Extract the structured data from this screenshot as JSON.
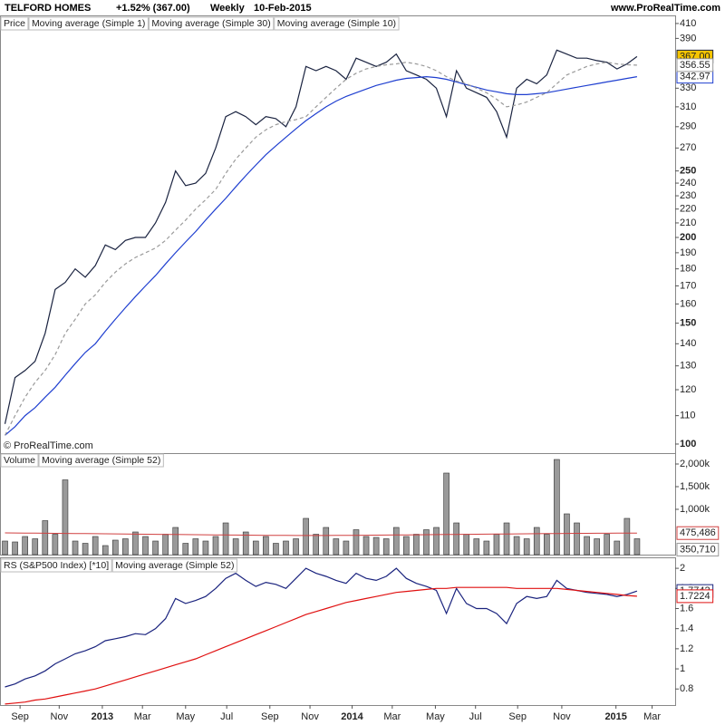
{
  "header": {
    "title": "TELFORD HOMES",
    "change": "+1.52% (367.00)",
    "period": "Weekly",
    "date": "10-Feb-2015",
    "site": "www.ProRealTime.com",
    "copyright": "© ProRealTime.com"
  },
  "x_axis": {
    "xlim": [
      -0.5,
      66.8
    ],
    "xticks": [
      {
        "value": 1.5,
        "label": "Sep"
      },
      {
        "value": 5.4,
        "label": "Nov"
      },
      {
        "value": 9.7,
        "label": "2013"
      },
      {
        "value": 13.7,
        "label": "Mar"
      },
      {
        "value": 18.0,
        "label": "May"
      },
      {
        "value": 22.1,
        "label": "Jul"
      },
      {
        "value": 26.4,
        "label": "Sep"
      },
      {
        "value": 30.4,
        "label": "Nov"
      },
      {
        "value": 34.6,
        "label": "2014"
      },
      {
        "value": 38.6,
        "label": "Mar"
      },
      {
        "value": 42.9,
        "label": "May"
      },
      {
        "value": 46.9,
        "label": "Jul"
      },
      {
        "value": 51.1,
        "label": "Sep"
      },
      {
        "value": 55.5,
        "label": "Nov"
      },
      {
        "value": 60.9,
        "label": "2015"
      },
      {
        "value": 64.5,
        "label": "Mar"
      }
    ]
  },
  "chart_data": [
    {
      "type": "line",
      "label": "Price",
      "log_scale": true,
      "ylim": [
        97,
        420
      ],
      "yticks": [
        100,
        110,
        120,
        130,
        140,
        150,
        160,
        170,
        180,
        190,
        200,
        210,
        220,
        230,
        240,
        250,
        270,
        290,
        310,
        330,
        390,
        410
      ],
      "series": [
        {
          "name": "Moving average (Simple 1)",
          "color": "#1a2340",
          "dash": false,
          "label_bg": "#f5c400",
          "values": [
            107,
            125,
            128,
            132,
            145,
            168,
            172,
            180,
            175,
            182,
            195,
            192,
            198,
            200,
            200,
            210,
            225,
            250,
            238,
            240,
            248,
            270,
            300,
            305,
            300,
            292,
            300,
            298,
            290,
            310,
            355,
            350,
            355,
            350,
            340,
            365,
            360,
            355,
            360,
            370,
            350,
            345,
            340,
            330,
            300,
            350,
            330,
            325,
            320,
            305,
            280,
            330,
            340,
            335,
            345,
            375,
            370,
            365,
            365,
            362,
            360,
            352,
            358,
            367
          ],
          "value_label": "367.00"
        },
        {
          "name": "Moving average (Simple 30)",
          "color": "#1f3fd0",
          "dash": false,
          "label_bg": "#ffffff",
          "values": [
            103,
            106,
            110,
            113,
            117,
            121,
            126,
            131,
            136,
            140,
            146,
            152,
            158,
            164,
            170,
            176,
            183,
            190,
            197,
            204,
            212,
            220,
            228,
            237,
            246,
            255,
            264,
            272,
            280,
            288,
            296,
            303,
            310,
            316,
            321,
            325,
            329,
            333,
            336,
            339,
            341,
            342,
            343,
            342,
            340,
            337,
            334,
            331,
            328,
            326,
            324,
            323,
            323,
            324,
            325,
            327,
            329,
            331,
            333,
            335,
            337,
            339,
            341,
            342.97
          ],
          "value_label": "342.97"
        },
        {
          "name": "Moving average (Simple 10)",
          "color": "#9a9a9a",
          "dash": true,
          "label_bg": "#ffffff",
          "values": [
            103,
            110,
            117,
            123,
            128,
            135,
            145,
            152,
            160,
            165,
            172,
            178,
            183,
            187,
            190,
            193,
            198,
            205,
            212,
            220,
            227,
            235,
            248,
            260,
            270,
            280,
            287,
            292,
            295,
            297,
            300,
            310,
            320,
            330,
            340,
            347,
            352,
            355,
            357,
            358,
            360,
            358,
            355,
            350,
            343,
            338,
            335,
            330,
            325,
            318,
            310,
            312,
            315,
            320,
            325,
            335,
            345,
            350,
            355,
            358,
            360,
            358,
            357,
            356.55
          ],
          "value_label": "356.55"
        }
      ]
    },
    {
      "type": "bar",
      "label": "Volume",
      "ylim": [
        0,
        2240000
      ],
      "yticks": [
        {
          "value": 1000000,
          "label": "1,000k"
        },
        {
          "value": 1500000,
          "label": "1,500k"
        },
        {
          "value": 2000000,
          "label": "2,000k"
        }
      ],
      "color": "#9a9a9a",
      "values": [
        300000,
        280000,
        400000,
        350000,
        750000,
        450000,
        1650000,
        300000,
        250000,
        400000,
        200000,
        320000,
        350000,
        500000,
        400000,
        300000,
        450000,
        600000,
        250000,
        350000,
        300000,
        400000,
        700000,
        350000,
        500000,
        300000,
        400000,
        250000,
        300000,
        350000,
        800000,
        450000,
        600000,
        350000,
        300000,
        550000,
        400000,
        380000,
        350000,
        600000,
        400000,
        450000,
        550000,
        600000,
        1800000,
        700000,
        450000,
        350000,
        300000,
        450000,
        700000,
        400000,
        350000,
        600000,
        450000,
        2100000,
        900000,
        700000,
        400000,
        350000,
        450000,
        300000,
        800000,
        350710
      ],
      "value_label": "350,710",
      "series": [
        {
          "name": "Moving average (Simple 52)",
          "color": "#d04040",
          "values": [
            480000,
            478000,
            476000,
            474000,
            472000,
            470000,
            468000,
            466000,
            464000,
            462000,
            460000,
            458000,
            455000,
            452000,
            450000,
            448000,
            446000,
            444000,
            442000,
            440000,
            438000,
            436000,
            434000,
            432000,
            430000,
            428000,
            426000,
            425000,
            424000,
            423000,
            422000,
            422000,
            423000,
            424000,
            425000,
            426000,
            428000,
            430000,
            432000,
            434000,
            436000,
            438000,
            440000,
            442000,
            444000,
            446000,
            448000,
            450000,
            452000,
            454000,
            456000,
            458000,
            460000,
            462000,
            464000,
            466000,
            468000,
            470000,
            471000,
            472000,
            473000,
            474000,
            475000,
            475486
          ],
          "value_label": "475,486"
        }
      ]
    },
    {
      "type": "line",
      "label": "RS (S&P500 Index) [*10]",
      "ylim": [
        0.64,
        2.1
      ],
      "yticks": [
        0.8,
        1,
        1.2,
        1.4,
        1.6,
        1.8,
        2
      ],
      "series": [
        {
          "name": "RS (S&P500 Index) [*10]",
          "color": "#1a237e",
          "label_bg": "#ffffff",
          "values": [
            0.82,
            0.85,
            0.9,
            0.93,
            0.98,
            1.05,
            1.1,
            1.15,
            1.18,
            1.22,
            1.28,
            1.3,
            1.32,
            1.35,
            1.34,
            1.4,
            1.5,
            1.7,
            1.65,
            1.68,
            1.72,
            1.8,
            1.9,
            1.95,
            1.88,
            1.82,
            1.86,
            1.84,
            1.8,
            1.9,
            2.0,
            1.95,
            1.92,
            1.88,
            1.85,
            1.95,
            1.9,
            1.88,
            1.92,
            2.0,
            1.9,
            1.85,
            1.82,
            1.78,
            1.55,
            1.8,
            1.65,
            1.6,
            1.6,
            1.55,
            1.45,
            1.65,
            1.72,
            1.7,
            1.72,
            1.88,
            1.8,
            1.78,
            1.76,
            1.75,
            1.74,
            1.72,
            1.74,
            1.7742
          ],
          "value_label": "1.7742"
        },
        {
          "name": "Moving average (Simple 52)",
          "color": "#e01010",
          "label_bg": "#ffffff",
          "values": [
            0.65,
            0.66,
            0.67,
            0.69,
            0.7,
            0.72,
            0.74,
            0.76,
            0.78,
            0.8,
            0.83,
            0.86,
            0.89,
            0.92,
            0.95,
            0.98,
            1.01,
            1.04,
            1.07,
            1.1,
            1.14,
            1.18,
            1.22,
            1.26,
            1.3,
            1.34,
            1.38,
            1.42,
            1.46,
            1.5,
            1.54,
            1.57,
            1.6,
            1.63,
            1.66,
            1.68,
            1.7,
            1.72,
            1.74,
            1.76,
            1.77,
            1.78,
            1.79,
            1.8,
            1.8,
            1.81,
            1.81,
            1.81,
            1.81,
            1.81,
            1.81,
            1.8,
            1.8,
            1.8,
            1.8,
            1.8,
            1.79,
            1.78,
            1.77,
            1.76,
            1.75,
            1.74,
            1.73,
            1.7224
          ],
          "value_label": "1.7224"
        }
      ]
    }
  ]
}
